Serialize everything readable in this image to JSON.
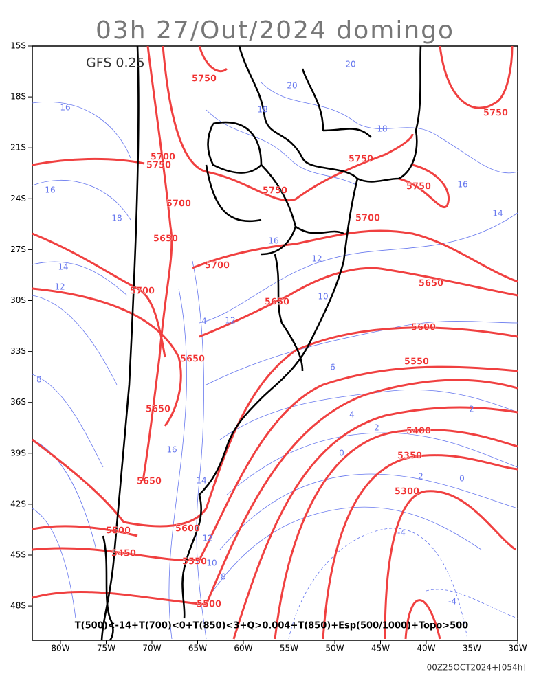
{
  "header": {
    "title": "03h 27/Out/2024 domingo",
    "model": "GFS 0.25"
  },
  "axes": {
    "lat": [
      "15S",
      "18S",
      "21S",
      "24S",
      "27S",
      "30S",
      "33S",
      "36S",
      "39S",
      "42S",
      "45S",
      "48S"
    ],
    "lon": [
      "80W",
      "75W",
      "70W",
      "65W",
      "60W",
      "55W",
      "50W",
      "45W",
      "40W",
      "35W",
      "30W"
    ]
  },
  "contours": {
    "heights": [
      "5750",
      "5750",
      "5700",
      "5750",
      "5750",
      "5750",
      "5750",
      "5700",
      "5650",
      "5700",
      "5700",
      "5700",
      "5650",
      "5650",
      "5600",
      "5650",
      "5550",
      "5650",
      "5400",
      "5350",
      "5650",
      "5300",
      "5600",
      "5500",
      "5450",
      "5550",
      "5500"
    ],
    "thickness": [
      "16",
      "20",
      "20",
      "18",
      "18",
      "16",
      "14",
      "14",
      "12",
      "12",
      "8",
      "6",
      "4",
      "2",
      "0",
      "2",
      "-4",
      "-4",
      "16",
      "14",
      "12",
      "10",
      "8",
      "16",
      "18",
      "16",
      "12",
      "10",
      "4",
      "2",
      "0"
    ]
  },
  "legend_text": "T(500)<-14+T(700)<0+T(850)<3+Q>0.004+T(850)+Esp(500/1000)+Topo>500",
  "footer": {
    "run": "00Z25OCT2024+[054h]"
  }
}
